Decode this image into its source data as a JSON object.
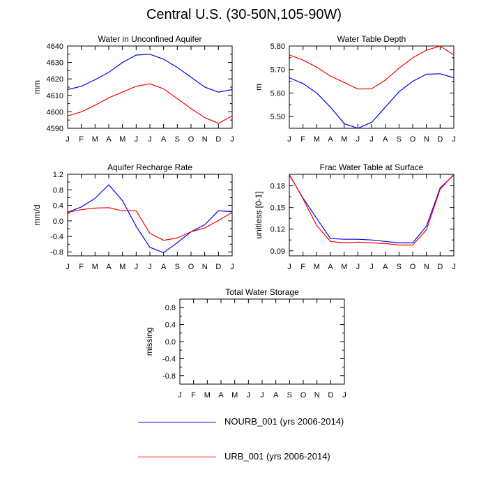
{
  "title": "Central U.S. (30-50N,105-90W)",
  "months": [
    "J",
    "F",
    "M",
    "A",
    "M",
    "J",
    "J",
    "A",
    "S",
    "O",
    "N",
    "D",
    "J"
  ],
  "legend": [
    {
      "label": "NOURB_001 (yrs 2006-2014)",
      "color": "#0000ff"
    },
    {
      "label": "URB_001 (yrs 2006-2014)",
      "color": "#ff0000"
    }
  ],
  "chart_data": [
    {
      "type": "line",
      "title": "Water in Unconfined Aquifer",
      "ylabel": "mm",
      "ylim": [
        4590,
        4640
      ],
      "yticks": [
        4590,
        4600,
        4610,
        4620,
        4630,
        4640
      ],
      "ytick_labels": [
        "4590",
        "4600",
        "4610",
        "4620",
        "4630",
        "4640"
      ],
      "series": [
        {
          "name": "NOURB_001",
          "values": [
            4613.5,
            4615.5,
            4619.5,
            4624,
            4630,
            4634.5,
            4635,
            4632,
            4627,
            4621,
            4615,
            4612,
            4613.5
          ]
        },
        {
          "name": "URB_001",
          "values": [
            4597.5,
            4600,
            4604,
            4608.5,
            4612,
            4615.5,
            4617,
            4614,
            4608,
            4602,
            4596.5,
            4593,
            4597.5
          ]
        }
      ]
    },
    {
      "type": "line",
      "title": "Water Table Depth",
      "ylabel": "m",
      "ylim": [
        5.45,
        5.8
      ],
      "yticks": [
        5.5,
        5.6,
        5.7,
        5.8
      ],
      "ytick_labels": [
        "5.50",
        "5.60",
        "5.70",
        "5.80"
      ],
      "series": [
        {
          "name": "NOURB_001",
          "values": [
            5.665,
            5.64,
            5.6,
            5.54,
            5.47,
            5.45,
            5.475,
            5.54,
            5.605,
            5.65,
            5.68,
            5.682,
            5.665
          ]
        },
        {
          "name": "URB_001",
          "values": [
            5.762,
            5.74,
            5.71,
            5.672,
            5.645,
            5.617,
            5.618,
            5.655,
            5.705,
            5.75,
            5.782,
            5.8,
            5.762
          ]
        }
      ]
    },
    {
      "type": "line",
      "title": "Aquifer Recharge Rate",
      "ylabel": "mm/d",
      "ylim": [
        -0.9,
        1.2
      ],
      "yticks": [
        -0.8,
        -0.4,
        0.0,
        0.4,
        0.8,
        1.2
      ],
      "ytick_labels": [
        "-0.8",
        "-0.4",
        "0.0",
        "0.4",
        "0.8",
        "1.2"
      ],
      "series": [
        {
          "name": "NOURB_001",
          "values": [
            0.22,
            0.36,
            0.58,
            0.93,
            0.52,
            -0.14,
            -0.68,
            -0.82,
            -0.56,
            -0.28,
            -0.1,
            0.26,
            0.24
          ]
        },
        {
          "name": "URB_001",
          "values": [
            0.22,
            0.29,
            0.33,
            0.34,
            0.26,
            0.26,
            -0.32,
            -0.5,
            -0.44,
            -0.28,
            -0.18,
            0.01,
            0.22
          ]
        }
      ]
    },
    {
      "type": "line",
      "title": "Frac Water Table at Surface",
      "ylabel": "unitless [0-1]",
      "ylim": [
        0.083,
        0.196
      ],
      "yticks": [
        0.09,
        0.12,
        0.15,
        0.18
      ],
      "ytick_labels": [
        "0.09",
        "0.12",
        "0.15",
        "0.18"
      ],
      "series": [
        {
          "name": "NOURB_001",
          "values": [
            0.195,
            0.163,
            0.135,
            0.107,
            0.106,
            0.106,
            0.105,
            0.103,
            0.101,
            0.101,
            0.124,
            0.177,
            0.195
          ]
        },
        {
          "name": "URB_001",
          "values": [
            0.196,
            0.162,
            0.125,
            0.103,
            0.101,
            0.102,
            0.101,
            0.1,
            0.098,
            0.098,
            0.119,
            0.175,
            0.196
          ]
        }
      ]
    },
    {
      "type": "line",
      "title": "Total Water Storage",
      "ylabel": "missing",
      "ylim": [
        -1.0,
        1.0
      ],
      "yticks": [
        -0.8,
        -0.4,
        0.0,
        0.4,
        0.8
      ],
      "ytick_labels": [
        "-0.8",
        "-0.4",
        "0.0",
        "0.4",
        "0.8"
      ],
      "series": []
    }
  ]
}
